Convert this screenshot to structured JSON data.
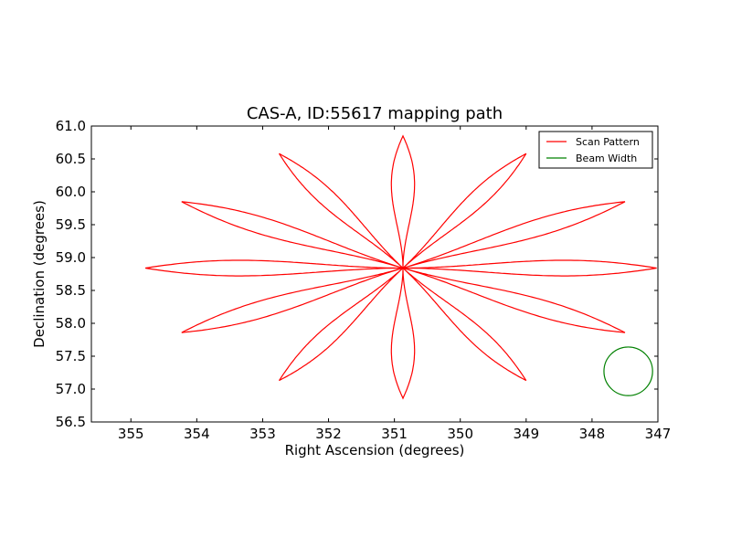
{
  "chart_data": {
    "type": "line",
    "title": "CAS-A, ID:55617 mapping path",
    "xlabel": "Right Ascension (degrees)",
    "ylabel": "Declination (degrees)",
    "xlim": [
      355.6,
      347.0
    ],
    "ylim": [
      56.5,
      61.0
    ],
    "x_inverted": true,
    "x_ticks": [
      "355",
      "354",
      "353",
      "352",
      "351",
      "350",
      "349",
      "348",
      "347"
    ],
    "x_tick_values": [
      355,
      354,
      353,
      352,
      351,
      350,
      349,
      348,
      347
    ],
    "y_ticks": [
      "56.5",
      "57.0",
      "57.5",
      "58.0",
      "58.5",
      "59.0",
      "59.5",
      "60.0",
      "60.5",
      "61.0"
    ],
    "y_tick_values": [
      56.5,
      57.0,
      57.5,
      58.0,
      58.5,
      59.0,
      59.5,
      60.0,
      60.5,
      61.0
    ],
    "grid": false,
    "legend_position": "top-right",
    "series": [
      {
        "name": "Scan Pattern",
        "color": "#ff0000",
        "kind": "rosette",
        "center": [
          350.87,
          58.84
        ],
        "petals": [
          {
            "tip": [
              350.87,
              60.85
            ],
            "halfwidth": 0.36
          },
          {
            "tip": [
              349.0,
              60.58
            ],
            "halfwidth": 0.2
          },
          {
            "tip": [
              347.5,
              59.85
            ],
            "halfwidth": 0.2
          },
          {
            "tip": [
              347.02,
              58.84
            ],
            "halfwidth": 0.17
          },
          {
            "tip": [
              347.5,
              57.86
            ],
            "halfwidth": 0.2
          },
          {
            "tip": [
              349.0,
              57.13
            ],
            "halfwidth": 0.2
          },
          {
            "tip": [
              350.87,
              56.86
            ],
            "halfwidth": 0.36
          },
          {
            "tip": [
              352.75,
              57.13
            ],
            "halfwidth": 0.2
          },
          {
            "tip": [
              354.23,
              57.86
            ],
            "halfwidth": 0.2
          },
          {
            "tip": [
              354.78,
              58.84
            ],
            "halfwidth": 0.17
          },
          {
            "tip": [
              354.23,
              59.85
            ],
            "halfwidth": 0.2
          },
          {
            "tip": [
              352.75,
              60.58
            ],
            "halfwidth": 0.2
          }
        ]
      },
      {
        "name": "Beam Width",
        "color": "#008000",
        "kind": "circle",
        "center": [
          347.45,
          57.27
        ],
        "radius_deg_dec": 0.37
      }
    ]
  }
}
